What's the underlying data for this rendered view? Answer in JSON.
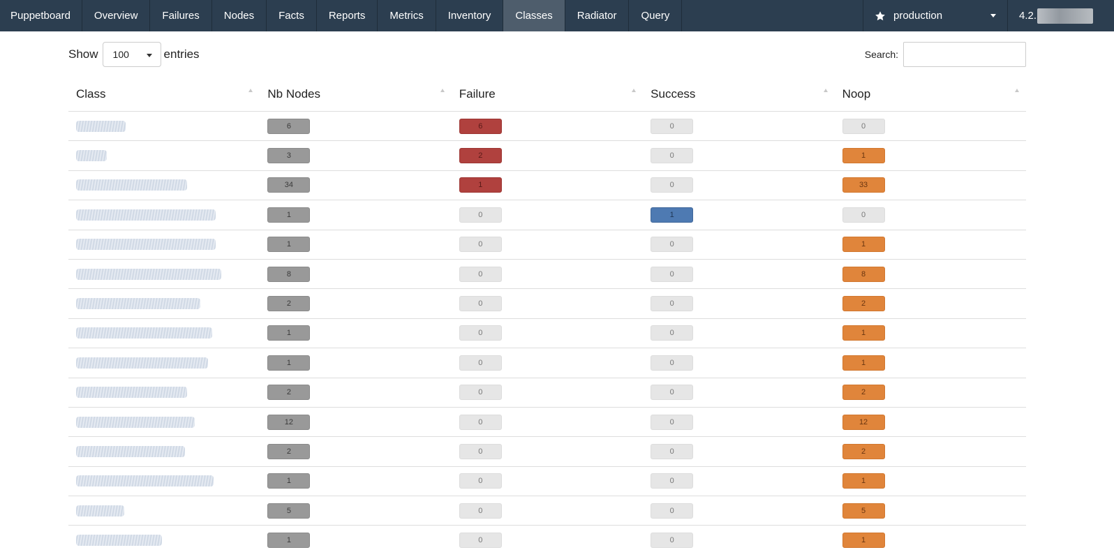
{
  "navbar": {
    "brand": "Puppetboard",
    "items": [
      "Overview",
      "Failures",
      "Nodes",
      "Facts",
      "Reports",
      "Metrics",
      "Inventory",
      "Classes",
      "Radiator",
      "Query"
    ],
    "active": "Classes",
    "environment": "production",
    "version": "4.2."
  },
  "controls": {
    "show_label": "Show",
    "entries_value": "100",
    "entries_label": "entries",
    "search_label": "Search:"
  },
  "table": {
    "columns": [
      "Class",
      "Nb Nodes",
      "Failure",
      "Success",
      "Noop"
    ],
    "rows": [
      {
        "nodes": "6",
        "failure": "6",
        "success": "0",
        "noop": "0",
        "name_fraction": 0.26
      },
      {
        "nodes": "3",
        "failure": "2",
        "success": "0",
        "noop": "1",
        "name_fraction": 0.16
      },
      {
        "nodes": "34",
        "failure": "1",
        "success": "0",
        "noop": "33",
        "name_fraction": 0.58
      },
      {
        "nodes": "1",
        "failure": "0",
        "success": "1",
        "noop": "0",
        "name_fraction": 0.73
      },
      {
        "nodes": "1",
        "failure": "0",
        "success": "0",
        "noop": "1",
        "name_fraction": 0.73
      },
      {
        "nodes": "8",
        "failure": "0",
        "success": "0",
        "noop": "8",
        "name_fraction": 0.76
      },
      {
        "nodes": "2",
        "failure": "0",
        "success": "0",
        "noop": "2",
        "name_fraction": 0.65
      },
      {
        "nodes": "1",
        "failure": "0",
        "success": "0",
        "noop": "1",
        "name_fraction": 0.71
      },
      {
        "nodes": "1",
        "failure": "0",
        "success": "0",
        "noop": "1",
        "name_fraction": 0.69
      },
      {
        "nodes": "2",
        "failure": "0",
        "success": "0",
        "noop": "2",
        "name_fraction": 0.58
      },
      {
        "nodes": "12",
        "failure": "0",
        "success": "0",
        "noop": "12",
        "name_fraction": 0.62
      },
      {
        "nodes": "2",
        "failure": "0",
        "success": "0",
        "noop": "2",
        "name_fraction": 0.57
      },
      {
        "nodes": "1",
        "failure": "0",
        "success": "0",
        "noop": "1",
        "name_fraction": 0.72
      },
      {
        "nodes": "5",
        "failure": "0",
        "success": "0",
        "noop": "5",
        "name_fraction": 0.25
      },
      {
        "nodes": "1",
        "failure": "0",
        "success": "0",
        "noop": "1",
        "name_fraction": 0.45
      }
    ]
  },
  "colors": {
    "navbar": "#2c3e50",
    "active_tab": "#4e5d6c",
    "nodes_badge": "#999999",
    "failure_badge": "#b0413e",
    "success_badge": "#4e7ab2",
    "noop_badge": "#e0853b",
    "zero_badge": "#e6e6e6"
  },
  "icons": {
    "environment": "star-icon",
    "dropdown": "caret-down-icon",
    "sort": "sort-asc-icon"
  }
}
